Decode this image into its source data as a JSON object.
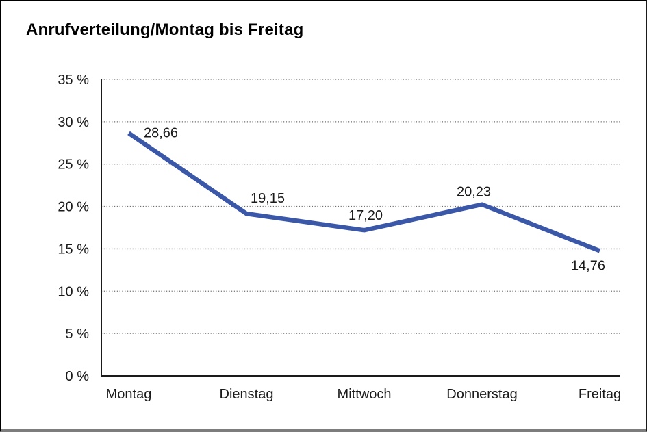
{
  "chart_data": {
    "type": "line",
    "title": "Anrufverteilung/Montag bis Freitag",
    "categories": [
      "Montag",
      "Dienstag",
      "Mittwoch",
      "Donnerstag",
      "Freitag"
    ],
    "values": [
      28.66,
      19.15,
      17.2,
      20.23,
      14.76
    ],
    "value_labels": [
      "28,66",
      "19,15",
      "17,20",
      "20,23",
      "14,76"
    ],
    "xlabel": "",
    "ylabel": "",
    "ylim": [
      0,
      35
    ],
    "y_tick_step": 5,
    "y_tick_labels": [
      "0 %",
      "5 %",
      "10 %",
      "15 %",
      "20 %",
      "25 %",
      "30 %",
      "35 %"
    ],
    "grid": "horizontal-dotted",
    "legend_position": "none",
    "colors": {
      "line": "#3a57a8",
      "axis": "#1a1a1a",
      "grid": "#6f6f6f",
      "text": "#1a1a1a",
      "background": "#ffffff",
      "frame_border": "#000000",
      "frame_bottom": "#7d7d7d"
    }
  }
}
